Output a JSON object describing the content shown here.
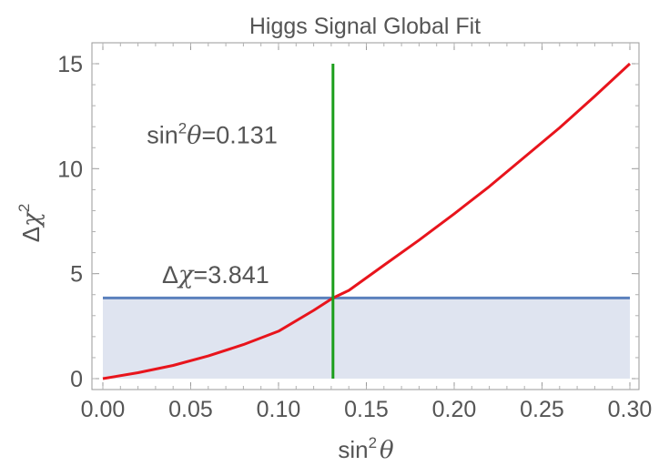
{
  "chart_data": {
    "type": "line",
    "title": "Higgs Signal Global Fit",
    "xlabel": {
      "prefix": "sin",
      "sup": "2",
      "symbol": "θ"
    },
    "ylabel": {
      "prefix": "Δ",
      "symbol": "χ",
      "sup": "2"
    },
    "xlim": [
      0.0,
      0.3
    ],
    "ylim": [
      0,
      15
    ],
    "x_ticks": [
      0.0,
      0.05,
      0.1,
      0.15,
      0.2,
      0.25,
      0.3
    ],
    "x_tick_labels": [
      "0.00",
      "0.05",
      "0.10",
      "0.15",
      "0.20",
      "0.25",
      "0.30"
    ],
    "y_ticks": [
      0,
      5,
      10,
      15
    ],
    "y_tick_labels": [
      "0",
      "5",
      "10",
      "15"
    ],
    "grid": false,
    "series": [
      {
        "color": "#e8141c",
        "x": [
          0.0,
          0.02,
          0.04,
          0.06,
          0.08,
          0.1,
          0.12,
          0.131,
          0.14,
          0.16,
          0.18,
          0.2,
          0.22,
          0.24,
          0.26,
          0.28,
          0.3
        ],
        "y": [
          0.0,
          0.28,
          0.63,
          1.08,
          1.62,
          2.26,
          3.25,
          3.84,
          4.2,
          5.4,
          6.6,
          7.85,
          9.15,
          10.55,
          11.95,
          13.45,
          15.0
        ]
      }
    ],
    "annotations": {
      "horizontal_line": {
        "y": 3.841,
        "color": "#5b81bd",
        "label": {
          "prefix": "Δ",
          "symbol": "χ",
          "value": "=3.841"
        }
      },
      "vertical_line": {
        "x": 0.131,
        "y_range": [
          0,
          15
        ],
        "color": "#1b9e1b",
        "label": {
          "prefix": "sin",
          "sup": "2",
          "symbol": "θ",
          "value": "=0.131"
        },
        "label_at": [
          0.025,
          11.2
        ]
      },
      "shaded_region": {
        "x_range": [
          0.0,
          0.3
        ],
        "y_range": [
          0,
          3.841
        ],
        "color": "#dfe4f0"
      }
    }
  }
}
